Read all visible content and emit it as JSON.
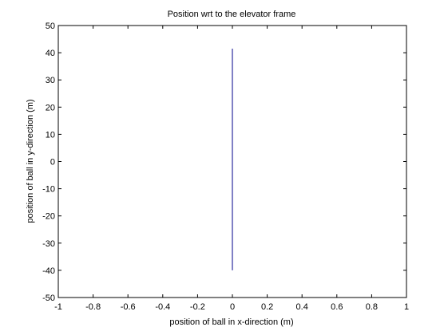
{
  "chart_data": {
    "type": "line",
    "title": "Position wrt to the elevator frame",
    "xlabel": "position of ball in x-direction (m)",
    "ylabel": "position of ball in y-direction (m)",
    "xlim": [
      -1,
      1
    ],
    "ylim": [
      -50,
      50
    ],
    "grid": false,
    "x_ticks": [
      -1,
      -0.8,
      -0.6,
      -0.4,
      -0.2,
      0,
      0.2,
      0.4,
      0.6,
      0.8,
      1
    ],
    "x_tick_labels": [
      "-1",
      "-0.8",
      "-0.6",
      "-0.4",
      "-0.2",
      "0",
      "0.2",
      "0.4",
      "0.6",
      "0.8",
      "1"
    ],
    "y_ticks": [
      -50,
      -40,
      -30,
      -20,
      -10,
      0,
      10,
      20,
      30,
      40,
      50
    ],
    "y_tick_labels": [
      "-50",
      "-40",
      "-30",
      "-20",
      "-10",
      "0",
      "10",
      "20",
      "30",
      "40",
      "50"
    ],
    "series": [
      {
        "color": "#00008b",
        "x": [
          0,
          0
        ],
        "y": [
          -40,
          41.5
        ]
      }
    ]
  }
}
